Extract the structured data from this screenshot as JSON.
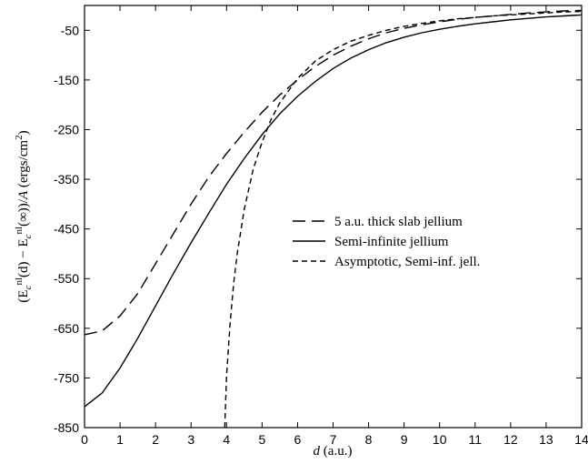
{
  "chart_data": {
    "type": "line",
    "xlabel_var": "d",
    "xlabel_unit": "(a.u.)",
    "ylabel_parts": [
      "(E",
      "c",
      "nl",
      "(d) − E",
      "c",
      "nl",
      "(∞))/",
      "A",
      " (ergs/cm",
      "2",
      ")"
    ],
    "xlim": [
      0,
      14
    ],
    "ylim": [
      -850,
      0
    ],
    "x_ticks": [
      0,
      1,
      2,
      3,
      4,
      5,
      6,
      7,
      8,
      9,
      10,
      11,
      12,
      13,
      14
    ],
    "y_ticks": [
      -850,
      -750,
      -650,
      -550,
      -450,
      -350,
      -250,
      -150,
      -50
    ],
    "grid": false,
    "legend_position": "right-middle",
    "series": [
      {
        "name": "5 a.u. thick slab jellium",
        "style": "long-dash",
        "x": [
          0,
          0.5,
          1,
          1.5,
          2,
          2.5,
          3,
          3.5,
          4,
          4.5,
          5,
          5.5,
          6,
          6.5,
          7,
          7.5,
          8,
          8.5,
          9,
          9.5,
          10,
          10.5,
          11,
          11.5,
          12,
          12.5,
          13,
          13.5,
          14
        ],
        "y": [
          -663,
          -655,
          -625,
          -580,
          -520,
          -460,
          -400,
          -345,
          -298,
          -255,
          -215,
          -180,
          -150,
          -123,
          -100,
          -82,
          -67,
          -55,
          -46,
          -39,
          -33,
          -28,
          -24,
          -21,
          -18,
          -15,
          -13,
          -11,
          -10
        ]
      },
      {
        "name": "Semi-infinite jellium",
        "style": "solid",
        "x": [
          0,
          0.5,
          1,
          1.5,
          2,
          2.5,
          3,
          3.5,
          4,
          4.5,
          5,
          5.5,
          6,
          6.5,
          7,
          7.5,
          8,
          8.5,
          9,
          9.5,
          10,
          10.5,
          11,
          11.5,
          12,
          12.5,
          13,
          13.5,
          14
        ],
        "y": [
          -808,
          -780,
          -730,
          -670,
          -605,
          -540,
          -478,
          -418,
          -360,
          -308,
          -260,
          -218,
          -183,
          -153,
          -127,
          -106,
          -89,
          -75,
          -64,
          -55,
          -48,
          -42,
          -37,
          -33,
          -29,
          -26,
          -23,
          -21,
          -19
        ]
      },
      {
        "name": "Asymptotic, Semi-inf. jell.",
        "style": "short-dash",
        "x": [
          3.95,
          4.0,
          4.1,
          4.2,
          4.3,
          4.5,
          4.75,
          5,
          5.25,
          5.5,
          6,
          6.5,
          7,
          7.5,
          8,
          8.5,
          9,
          9.5,
          10,
          10.5,
          11,
          11.5,
          12,
          12.5,
          13,
          13.5,
          14
        ],
        "y": [
          -850,
          -745,
          -640,
          -560,
          -500,
          -410,
          -330,
          -275,
          -230,
          -196,
          -147,
          -112,
          -89,
          -72,
          -60,
          -50,
          -42,
          -36,
          -31,
          -27,
          -24,
          -21,
          -19,
          -17,
          -15,
          -13,
          -12
        ]
      }
    ]
  }
}
